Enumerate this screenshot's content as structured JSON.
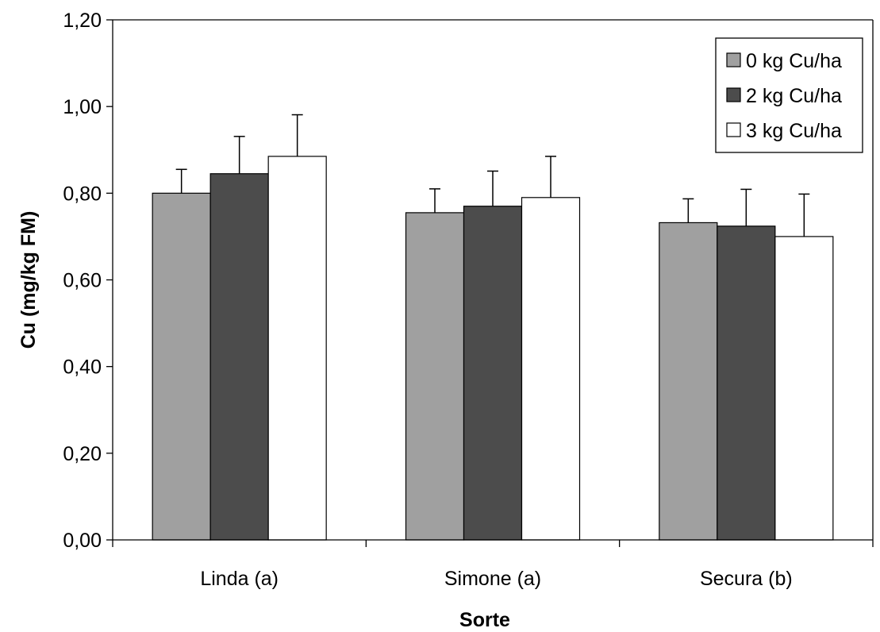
{
  "chart_data": {
    "type": "bar",
    "title": "",
    "xlabel": "Sorte",
    "ylabel": "Cu (mg/kg FM)",
    "categories": [
      "Linda (a)",
      "Simone (a)",
      "Secura (b)"
    ],
    "ylim": [
      0,
      1.2
    ],
    "yticks": [
      0,
      0.2,
      0.4,
      0.6,
      0.8,
      1.0,
      1.2
    ],
    "ytick_labels": [
      "0,00",
      "0,20",
      "0,40",
      "0,60",
      "0,80",
      "1,00",
      "1,20"
    ],
    "series": [
      {
        "name": "0 kg Cu/ha",
        "color": "#a0a0a0",
        "values": [
          0.8,
          0.755,
          0.732
        ],
        "errors": [
          0.055,
          0.055,
          0.055
        ]
      },
      {
        "name": "2 kg Cu/ha",
        "color": "#4c4c4c",
        "values": [
          0.845,
          0.77,
          0.724
        ],
        "errors": [
          0.086,
          0.081,
          0.085
        ]
      },
      {
        "name": "3 kg Cu/ha",
        "color": "#ffffff",
        "values": [
          0.885,
          0.79,
          0.7
        ],
        "errors": [
          0.096,
          0.095,
          0.098
        ]
      }
    ],
    "grid": false,
    "legend_position": "top-right",
    "error_bars": true
  }
}
